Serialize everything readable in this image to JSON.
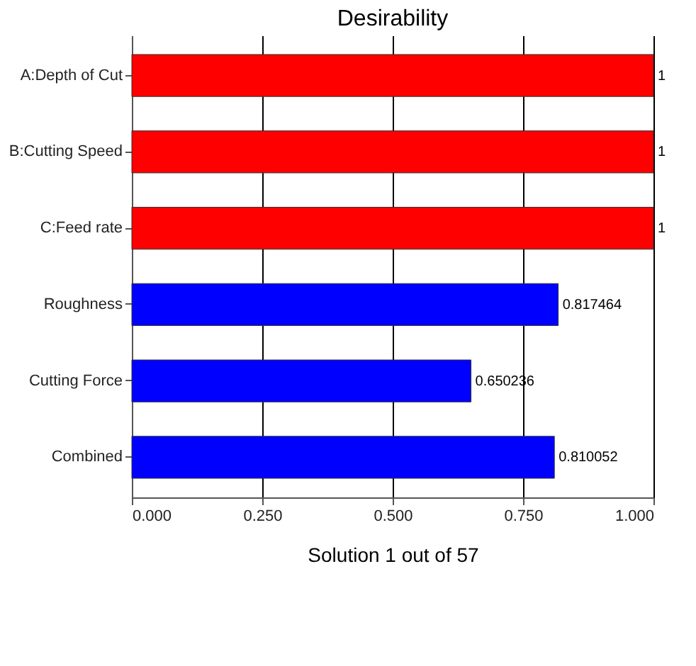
{
  "chart_data": {
    "type": "bar",
    "orientation": "horizontal",
    "title": "Desirability",
    "xlabel": "Solution 1 out of 57",
    "categories": [
      "A:Depth of Cut",
      "B:Cutting Speed",
      "C:Feed rate",
      "Roughness",
      "Cutting Force",
      "Combined"
    ],
    "values": [
      1,
      1,
      1,
      0.817464,
      0.650236,
      0.810052
    ],
    "colors": [
      "#ff0000",
      "#ff0000",
      "#ff0000",
      "#0000ff",
      "#0000ff",
      "#0000ff"
    ],
    "xlim": [
      0,
      1
    ],
    "xticks": [
      {
        "value": 0,
        "label": "0.000"
      },
      {
        "value": 0.25,
        "label": "0.250"
      },
      {
        "value": 0.5,
        "label": "0.500"
      },
      {
        "value": 0.75,
        "label": "0.750"
      },
      {
        "value": 1,
        "label": "1.000"
      }
    ],
    "grid": "x",
    "data_labels": true
  }
}
